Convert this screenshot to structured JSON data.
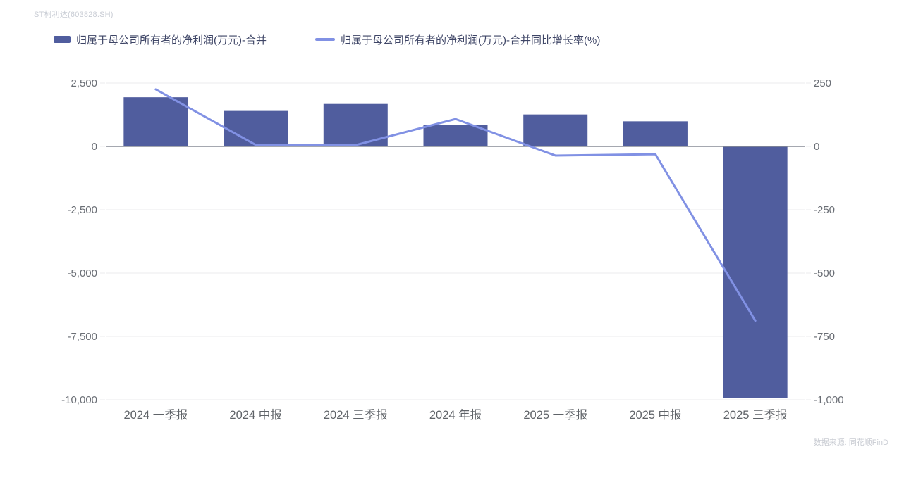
{
  "header": {
    "title": "ST柯利达(603828.SH)"
  },
  "legend": {
    "items": [
      {
        "label": "归属于母公司所有者的净利润(万元)-合并",
        "color": "#505d9e",
        "type": "bar"
      },
      {
        "label": "归属于母公司所有者的净利润(万元)-合并同比增长率(%)",
        "color": "#8191e4",
        "type": "line"
      }
    ]
  },
  "footer": {
    "source": "数据来源: 同花顺FinD"
  },
  "chart_data": {
    "type": "bar",
    "subtype": "bar-line-combo",
    "categories": [
      "2024 一季报",
      "2024 中报",
      "2024 三季报",
      "2024 年报",
      "2025 一季报",
      "2025 中报",
      "2025 三季报"
    ],
    "series": [
      {
        "name": "归属于母公司所有者的净利润(万元)-合并",
        "type": "bar",
        "axis": "left",
        "color": "#505d9e",
        "values": [
          1940,
          1400,
          1675,
          840,
          1260,
          990,
          -9920
        ]
      },
      {
        "name": "归属于母公司所有者的净利润(万元)-合并同比增长率(%)",
        "type": "line",
        "axis": "right",
        "color": "#8191e4",
        "values": [
          225,
          6,
          5,
          108,
          -36,
          -31,
          -688
        ]
      }
    ],
    "left_axis": {
      "ticks": [
        2500,
        0,
        -2500,
        -5000,
        -7500,
        -10000
      ],
      "labels": [
        "2,500",
        "0",
        "-2,500",
        "-5,000",
        "-7,500",
        "-10,000"
      ],
      "range": [
        -10000,
        2500
      ]
    },
    "right_axis": {
      "ticks": [
        250,
        0,
        -250,
        -500,
        -750,
        -1000
      ],
      "labels": [
        "250",
        "0",
        "-250",
        "-500",
        "-750",
        "-1,000"
      ],
      "range": [
        -1000,
        250
      ]
    },
    "grid": true,
    "legend_position": "top-left",
    "colors": {
      "grid_line": "#ebebee",
      "zero_line": "#878c96",
      "tick_label": "#6a6e75",
      "category_label": "#5f6368"
    }
  }
}
